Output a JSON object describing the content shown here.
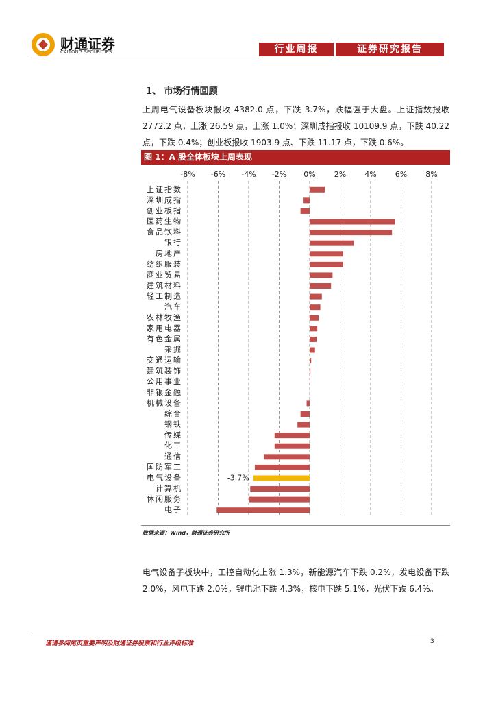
{
  "header": {
    "logo_cn": "财通证券",
    "logo_en": "CAITONG SECURITIES",
    "tag_left": "行业周报",
    "tag_right": "证券研究报告"
  },
  "section_title": "1、 市场行情回顾",
  "paragraph1": "上周电气设备板块报收 4382.0 点，下跌 3.7%，跌幅强于大盘。上证指数报收 2772.2 点，上涨 26.59 点，上涨 1.0%；深圳成指报收 10109.9 点，下跌 40.22 点，下跌 0.4%；创业板报收 1903.9 点、下跌 11.17 点，下跌 0.6%。",
  "chart_data": {
    "type": "hbar",
    "title": "图 1：A 股全体板块上周表现",
    "categories": [
      "上证指数",
      "深圳成指",
      "创业板指",
      "医药生物",
      "食品饮料",
      "银行",
      "房地产",
      "纺织服装",
      "商业贸易",
      "建筑材料",
      "轻工制造",
      "汽车",
      "农林牧渔",
      "家用电器",
      "有色金属",
      "采掘",
      "交通运输",
      "建筑装饰",
      "公用事业",
      "非银金融",
      "机械设备",
      "综合",
      "钢铁",
      "传媒",
      "化工",
      "通信",
      "国防军工",
      "电气设备",
      "计算机",
      "休闲服务",
      "电子"
    ],
    "values": [
      1.0,
      -0.4,
      -0.6,
      5.6,
      5.4,
      2.9,
      2.2,
      2.2,
      1.5,
      1.4,
      0.8,
      0.7,
      0.6,
      0.5,
      0.45,
      0.35,
      0.1,
      0.05,
      0.02,
      0.01,
      -0.2,
      -0.6,
      -0.8,
      -2.3,
      -2.3,
      -3.0,
      -3.6,
      -3.7,
      -3.9,
      -4.0,
      -6.1
    ],
    "value_labels": [
      null,
      null,
      null,
      null,
      null,
      null,
      null,
      null,
      null,
      null,
      null,
      null,
      null,
      null,
      null,
      null,
      null,
      null,
      null,
      null,
      null,
      null,
      null,
      null,
      null,
      null,
      null,
      "-3.7%",
      null,
      null,
      null
    ],
    "colors": [
      "#c0504d",
      "#c0504d",
      "#c0504d",
      "#c0504d",
      "#c0504d",
      "#c0504d",
      "#c0504d",
      "#c0504d",
      "#c0504d",
      "#c0504d",
      "#c0504d",
      "#c0504d",
      "#c0504d",
      "#c0504d",
      "#c0504d",
      "#c0504d",
      "#c0504d",
      "#c0504d",
      "#c0504d",
      "#c0504d",
      "#c0504d",
      "#c0504d",
      "#c0504d",
      "#c0504d",
      "#c0504d",
      "#c0504d",
      "#c0504d",
      "#f2b705",
      "#c0504d",
      "#c0504d",
      "#c0504d"
    ],
    "xlim": [
      -8,
      8
    ],
    "xticks": [
      {
        "value": -8,
        "label": "-8%"
      },
      {
        "value": -6,
        "label": "-6%"
      },
      {
        "value": -4,
        "label": "-4%"
      },
      {
        "value": -2,
        "label": "-2%"
      },
      {
        "value": 0,
        "label": "0%"
      },
      {
        "value": 2,
        "label": "2%"
      },
      {
        "value": 4,
        "label": "4%"
      },
      {
        "value": 6,
        "label": "6%"
      },
      {
        "value": 8,
        "label": "8%"
      }
    ],
    "grid": true
  },
  "source": "数据来源：Wind，财通证券研究所",
  "paragraph2": "电气设备子板块中，工控自动化上涨 1.3%，新能源汽车下跌 0.2%，发电设备下跌 2.0%，风电下跌 2.0%，锂电池下跌 4.3%，核电下跌 5.1%，光伏下跌 6.4%。",
  "footer": {
    "disclaimer": "谨请参阅尾页重要声明及财通证券股票和行业评级标准",
    "page": "3"
  }
}
